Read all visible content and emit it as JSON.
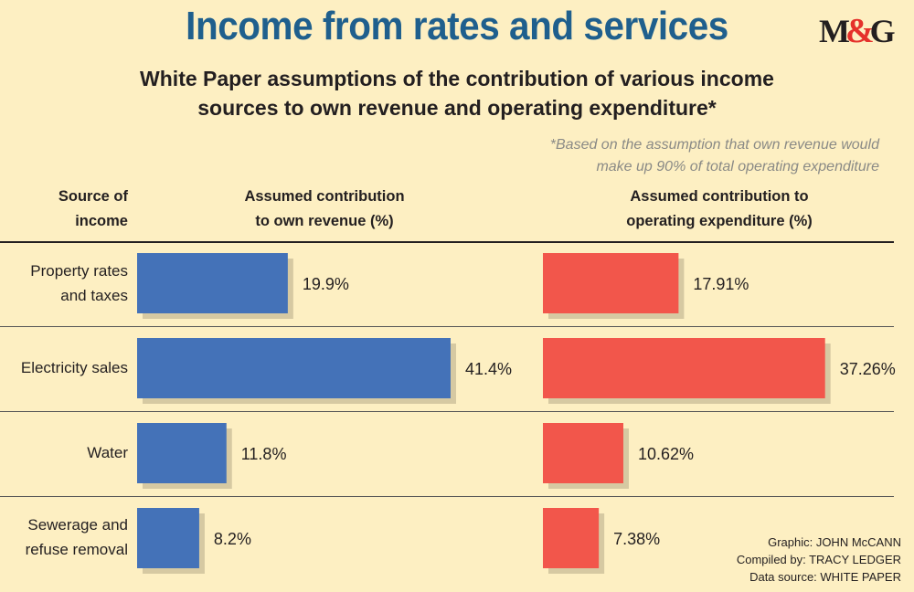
{
  "header": {
    "title": "Income from rates and services",
    "logo": "M&G",
    "subtitle_line1": "White Paper assumptions of the contribution of various income",
    "subtitle_line2": "sources to own revenue and operating expenditure*",
    "footnote_line1": "*Based on the assumption that own revenue would",
    "footnote_line2": "make up 90% of total operating expenditure"
  },
  "columns": {
    "source_line1": "Source of",
    "source_line2": "income",
    "own_line1": "Assumed contribution",
    "own_line2": "to own revenue (%)",
    "op_line1": "Assumed contribution to",
    "op_line2": "operating expenditure (%)"
  },
  "rows": [
    {
      "label_line1": "Property rates",
      "label_line2": "and taxes"
    },
    {
      "label_line1": "Electricity sales",
      "label_line2": ""
    },
    {
      "label_line1": "Water",
      "label_line2": ""
    },
    {
      "label_line1": "Sewerage and",
      "label_line2": "refuse removal"
    }
  ],
  "chart_data": {
    "type": "bar",
    "orientation": "horizontal",
    "categories": [
      "Property rates and taxes",
      "Electricity sales",
      "Water",
      "Sewerage and refuse removal"
    ],
    "series": [
      {
        "name": "Assumed contribution to own revenue (%)",
        "values": [
          19.9,
          41.4,
          11.8,
          8.2
        ],
        "labels": [
          "19.9%",
          "41.4%",
          "11.8%",
          "8.2%"
        ],
        "color": "#4472b8"
      },
      {
        "name": "Assumed contribution to operating expenditure (%)",
        "values": [
          17.91,
          37.26,
          10.62,
          7.38
        ],
        "labels": [
          "17.91%",
          "37.26%",
          "10.62%",
          "7.38%"
        ],
        "color": "#f2564b"
      }
    ],
    "shadow_color": "#d6c9a2"
  },
  "credits": {
    "graphic": "Graphic: JOHN McCANN",
    "compiled": "Compiled by: TRACY LEDGER",
    "source": "Data source: WHITE PAPER"
  }
}
